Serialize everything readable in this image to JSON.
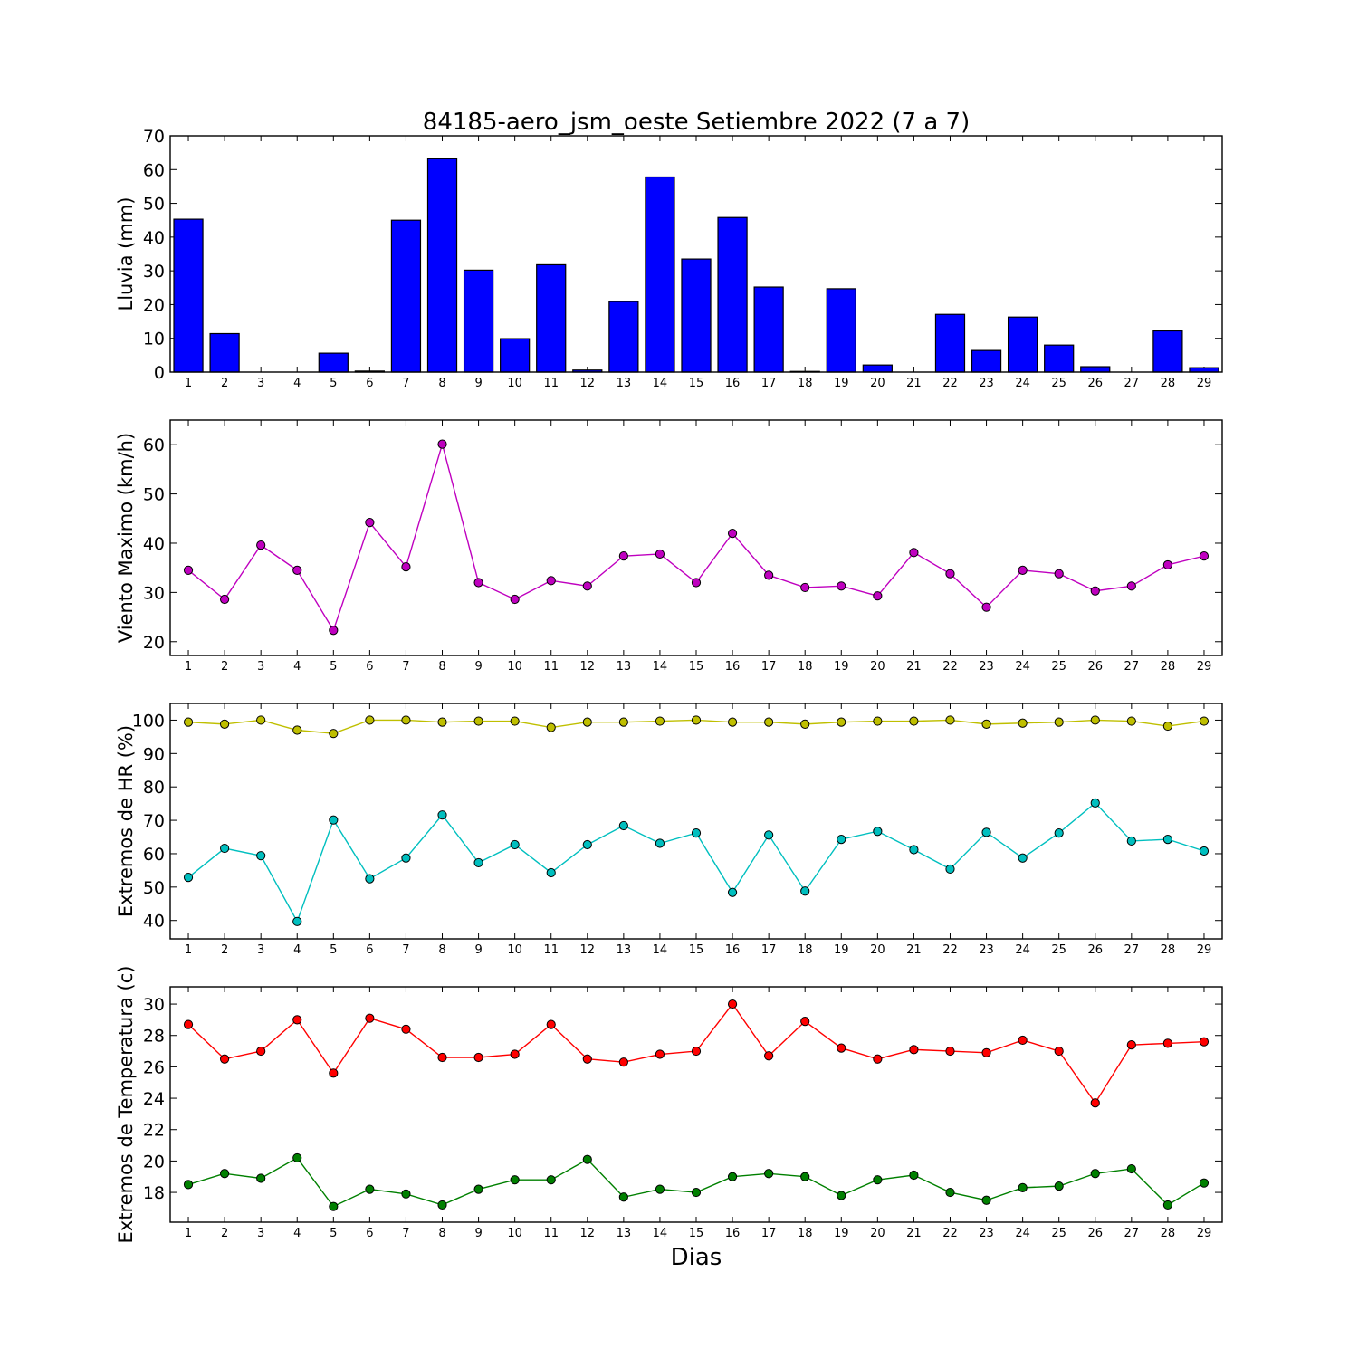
{
  "figure": {
    "title": "84185-aero_jsm_oeste Setiembre 2022  (7 a 7)",
    "xlabel": "Dias"
  },
  "chart_data": [
    {
      "type": "bar",
      "ylabel": "Lluvia (mm)",
      "ylim": [
        0,
        70
      ],
      "yticks": [
        0,
        10,
        20,
        30,
        40,
        50,
        60,
        70
      ],
      "categories": [
        "1",
        "2",
        "3",
        "4",
        "5",
        "6",
        "7",
        "8",
        "9",
        "10",
        "11",
        "12",
        "13",
        "14",
        "15",
        "16",
        "17",
        "18",
        "19",
        "20",
        "21",
        "22",
        "23",
        "24",
        "25",
        "26",
        "27",
        "28",
        "29"
      ],
      "series": [
        {
          "color": "#0000ff",
          "values": [
            45.3,
            11.4,
            0,
            0,
            5.6,
            0.3,
            45.0,
            63.2,
            30.2,
            9.9,
            31.8,
            0.6,
            20.9,
            57.8,
            33.5,
            45.8,
            25.2,
            0.2,
            24.7,
            2.1,
            0,
            17.1,
            6.4,
            16.3,
            8.0,
            1.6,
            0,
            12.2,
            1.3
          ]
        }
      ],
      "grid": false
    },
    {
      "type": "line",
      "ylabel": "Viento Maximo (km/h)",
      "ylim": [
        17.2,
        65
      ],
      "yticks": [
        20,
        30,
        40,
        50,
        60
      ],
      "x": [
        1,
        2,
        3,
        4,
        5,
        6,
        7,
        8,
        9,
        10,
        11,
        12,
        13,
        14,
        15,
        16,
        17,
        18,
        19,
        20,
        21,
        22,
        23,
        24,
        25,
        26,
        27,
        28,
        29
      ],
      "series": [
        {
          "color": "#bf00bf",
          "values": [
            34.5,
            28.6,
            39.6,
            34.5,
            22.3,
            44.2,
            35.2,
            60.1,
            32.0,
            28.6,
            32.4,
            31.3,
            37.4,
            37.8,
            32.0,
            42.0,
            33.5,
            31.0,
            31.3,
            29.3,
            38.1,
            33.8,
            27.0,
            34.5,
            33.8,
            30.3,
            31.3,
            35.6,
            37.4
          ]
        }
      ],
      "grid": false
    },
    {
      "type": "line",
      "ylabel": "Extremos de HR (%)",
      "ylim": [
        34.5,
        105
      ],
      "yticks": [
        40,
        50,
        60,
        70,
        80,
        90,
        100
      ],
      "x": [
        1,
        2,
        3,
        4,
        5,
        6,
        7,
        8,
        9,
        10,
        11,
        12,
        13,
        14,
        15,
        16,
        17,
        18,
        19,
        20,
        21,
        22,
        23,
        24,
        25,
        26,
        27,
        28,
        29
      ],
      "series": [
        {
          "color": "#bfbf00",
          "values": [
            99.4,
            98.8,
            100.0,
            97.0,
            96.0,
            100.0,
            100.0,
            99.4,
            99.7,
            99.7,
            97.8,
            99.4,
            99.4,
            99.7,
            100.0,
            99.4,
            99.4,
            98.8,
            99.4,
            99.7,
            99.7,
            100.0,
            98.8,
            99.1,
            99.4,
            100.0,
            99.7,
            98.2,
            99.7
          ]
        },
        {
          "color": "#00bfbf",
          "values": [
            52.9,
            61.6,
            59.4,
            39.7,
            70.1,
            52.5,
            58.7,
            71.6,
            57.3,
            62.7,
            54.3,
            62.7,
            68.4,
            63.1,
            66.2,
            48.4,
            65.6,
            48.8,
            64.3,
            66.7,
            61.2,
            55.4,
            66.4,
            58.7,
            66.2,
            75.2,
            63.8,
            64.3,
            60.8
          ]
        }
      ],
      "grid": false
    },
    {
      "type": "line",
      "ylabel": "Extremos de Temperatura (c)",
      "ylim": [
        16.1,
        31.1
      ],
      "yticks": [
        18,
        20,
        22,
        24,
        26,
        28,
        30
      ],
      "x": [
        1,
        2,
        3,
        4,
        5,
        6,
        7,
        8,
        9,
        10,
        11,
        12,
        13,
        14,
        15,
        16,
        17,
        18,
        19,
        20,
        21,
        22,
        23,
        24,
        25,
        26,
        27,
        28,
        29
      ],
      "series": [
        {
          "color": "#ff0000",
          "values": [
            28.7,
            26.5,
            27.0,
            29.0,
            25.6,
            29.1,
            28.4,
            26.6,
            26.6,
            26.8,
            28.7,
            26.5,
            26.3,
            26.8,
            27.0,
            30.0,
            26.7,
            28.9,
            27.2,
            26.5,
            27.1,
            27.0,
            26.9,
            27.7,
            27.0,
            23.7,
            27.4,
            27.5,
            27.6
          ]
        },
        {
          "color": "#008000",
          "values": [
            18.5,
            19.2,
            18.9,
            20.2,
            17.1,
            18.2,
            17.9,
            17.2,
            18.2,
            18.8,
            18.8,
            20.1,
            17.7,
            18.2,
            18.0,
            19.0,
            19.2,
            19.0,
            17.8,
            18.8,
            19.1,
            18.0,
            17.5,
            18.3,
            18.4,
            19.2,
            19.5,
            17.2,
            18.6
          ]
        }
      ],
      "grid": false
    }
  ]
}
